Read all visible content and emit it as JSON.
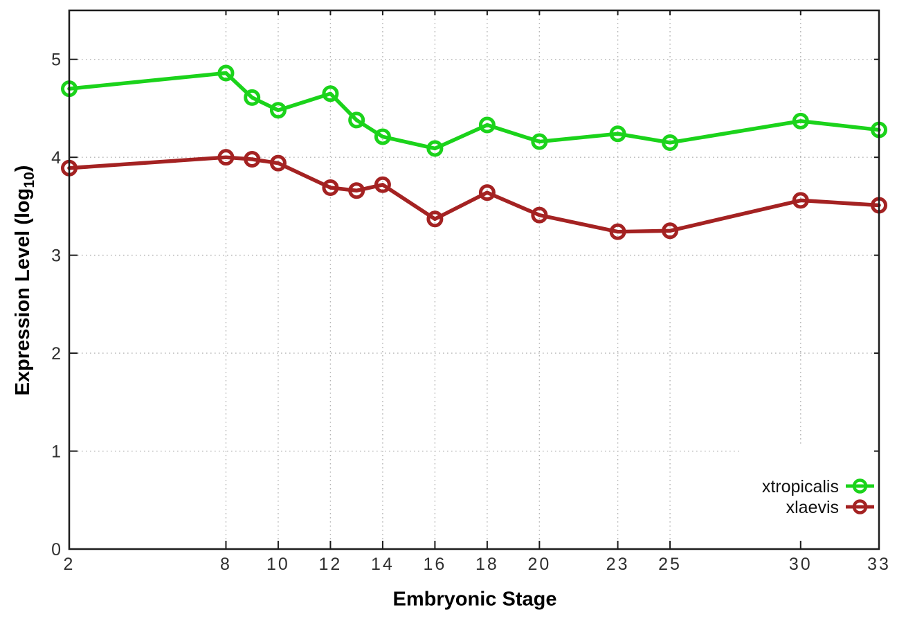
{
  "chart_data": {
    "type": "line",
    "title": "",
    "xlabel": "Embryonic Stage",
    "ylabel": "Expression Level (log10)",
    "ylabel_parts": {
      "main": "Expression Level (log",
      "sub": "10",
      "suffix": ")"
    },
    "x": [
      2,
      8,
      9,
      10,
      12,
      13,
      14,
      16,
      18,
      20,
      23,
      25,
      30,
      33
    ],
    "xticks": [
      2,
      8,
      10,
      12,
      14,
      16,
      18,
      20,
      23,
      25,
      30,
      33
    ],
    "yticks": [
      0,
      1,
      2,
      3,
      4,
      5
    ],
    "xlim": [
      2,
      33
    ],
    "ylim": [
      0,
      5.5
    ],
    "grid": true,
    "marker": "open-circle",
    "legend_position": "inside-bottom-right",
    "series": [
      {
        "name": "xtropicalis",
        "color": "#1bd31b",
        "values": [
          4.7,
          4.86,
          4.61,
          4.48,
          4.65,
          4.38,
          4.21,
          4.09,
          4.33,
          4.16,
          4.24,
          4.15,
          4.37,
          4.28
        ]
      },
      {
        "name": "xlaevis",
        "color": "#a42222",
        "values": [
          3.89,
          4.0,
          3.98,
          3.94,
          3.69,
          3.66,
          3.72,
          3.37,
          3.64,
          3.41,
          3.24,
          3.25,
          3.56,
          3.51
        ]
      }
    ],
    "colors": {
      "grid": "#b5b5b5",
      "border": "#1c1c1c",
      "tick_label": "#303030",
      "legend_text": "#111111",
      "legend_bg": "#ffffff"
    }
  }
}
